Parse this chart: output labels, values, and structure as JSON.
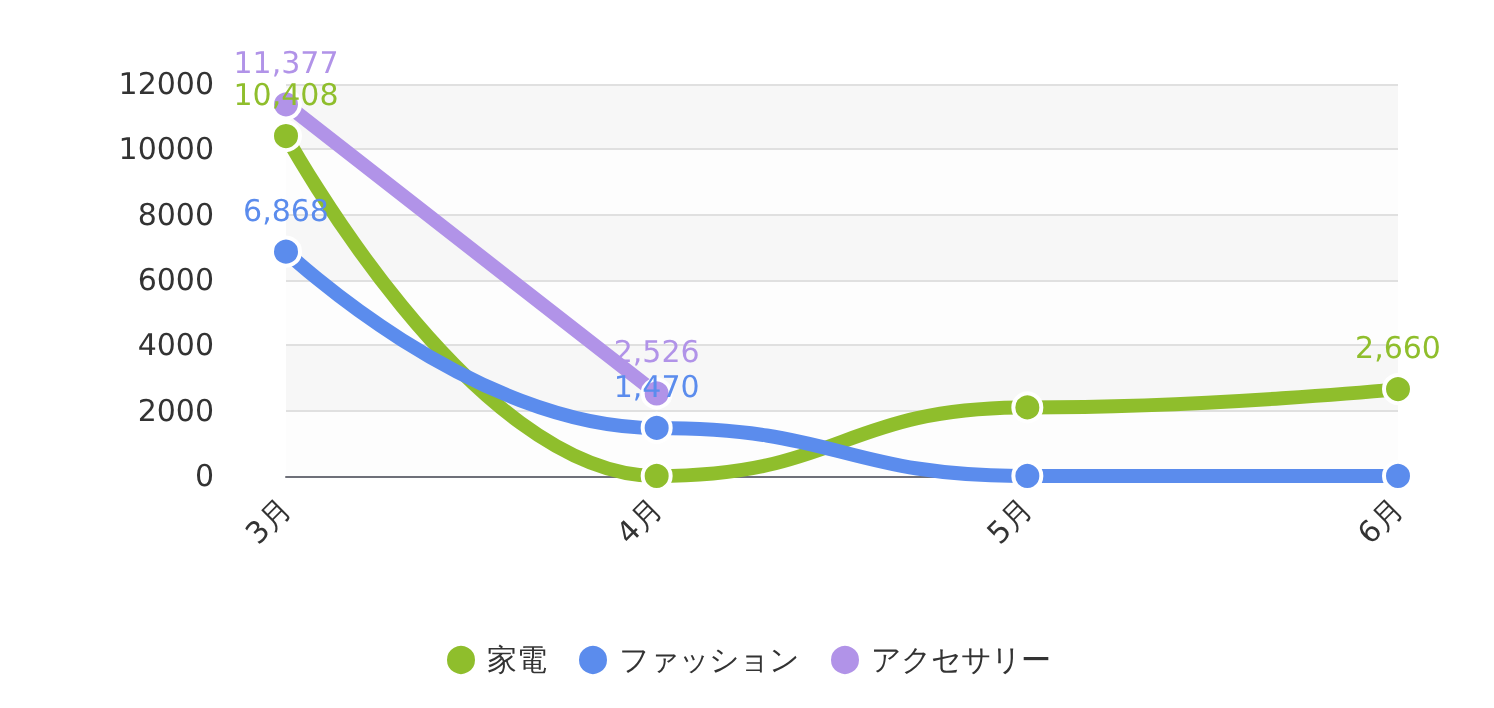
{
  "chart_data": {
    "type": "line",
    "categories": [
      "3月",
      "4月",
      "5月",
      "6月"
    ],
    "series": [
      {
        "name": "家電",
        "color": "#8fbe2c",
        "values": [
          10408,
          0,
          2100,
          2660
        ],
        "value_labels": [
          "10,408",
          null,
          null,
          "2,660"
        ]
      },
      {
        "name": "ファッション",
        "color": "#5b8ced",
        "values": [
          6868,
          1470,
          0,
          0
        ],
        "value_labels": [
          "6,868",
          "1,470",
          null,
          null
        ]
      },
      {
        "name": "アクセサリー",
        "color": "#b193e8",
        "values": [
          11377,
          2526,
          null,
          null
        ],
        "value_labels": [
          "11,377",
          "2,526",
          null,
          null
        ]
      }
    ],
    "ylim": [
      0,
      12000
    ],
    "yticks": [
      0,
      2000,
      4000,
      6000,
      8000,
      10000,
      12000
    ],
    "grid": "y",
    "legend": "bottom",
    "marker": "circle"
  }
}
